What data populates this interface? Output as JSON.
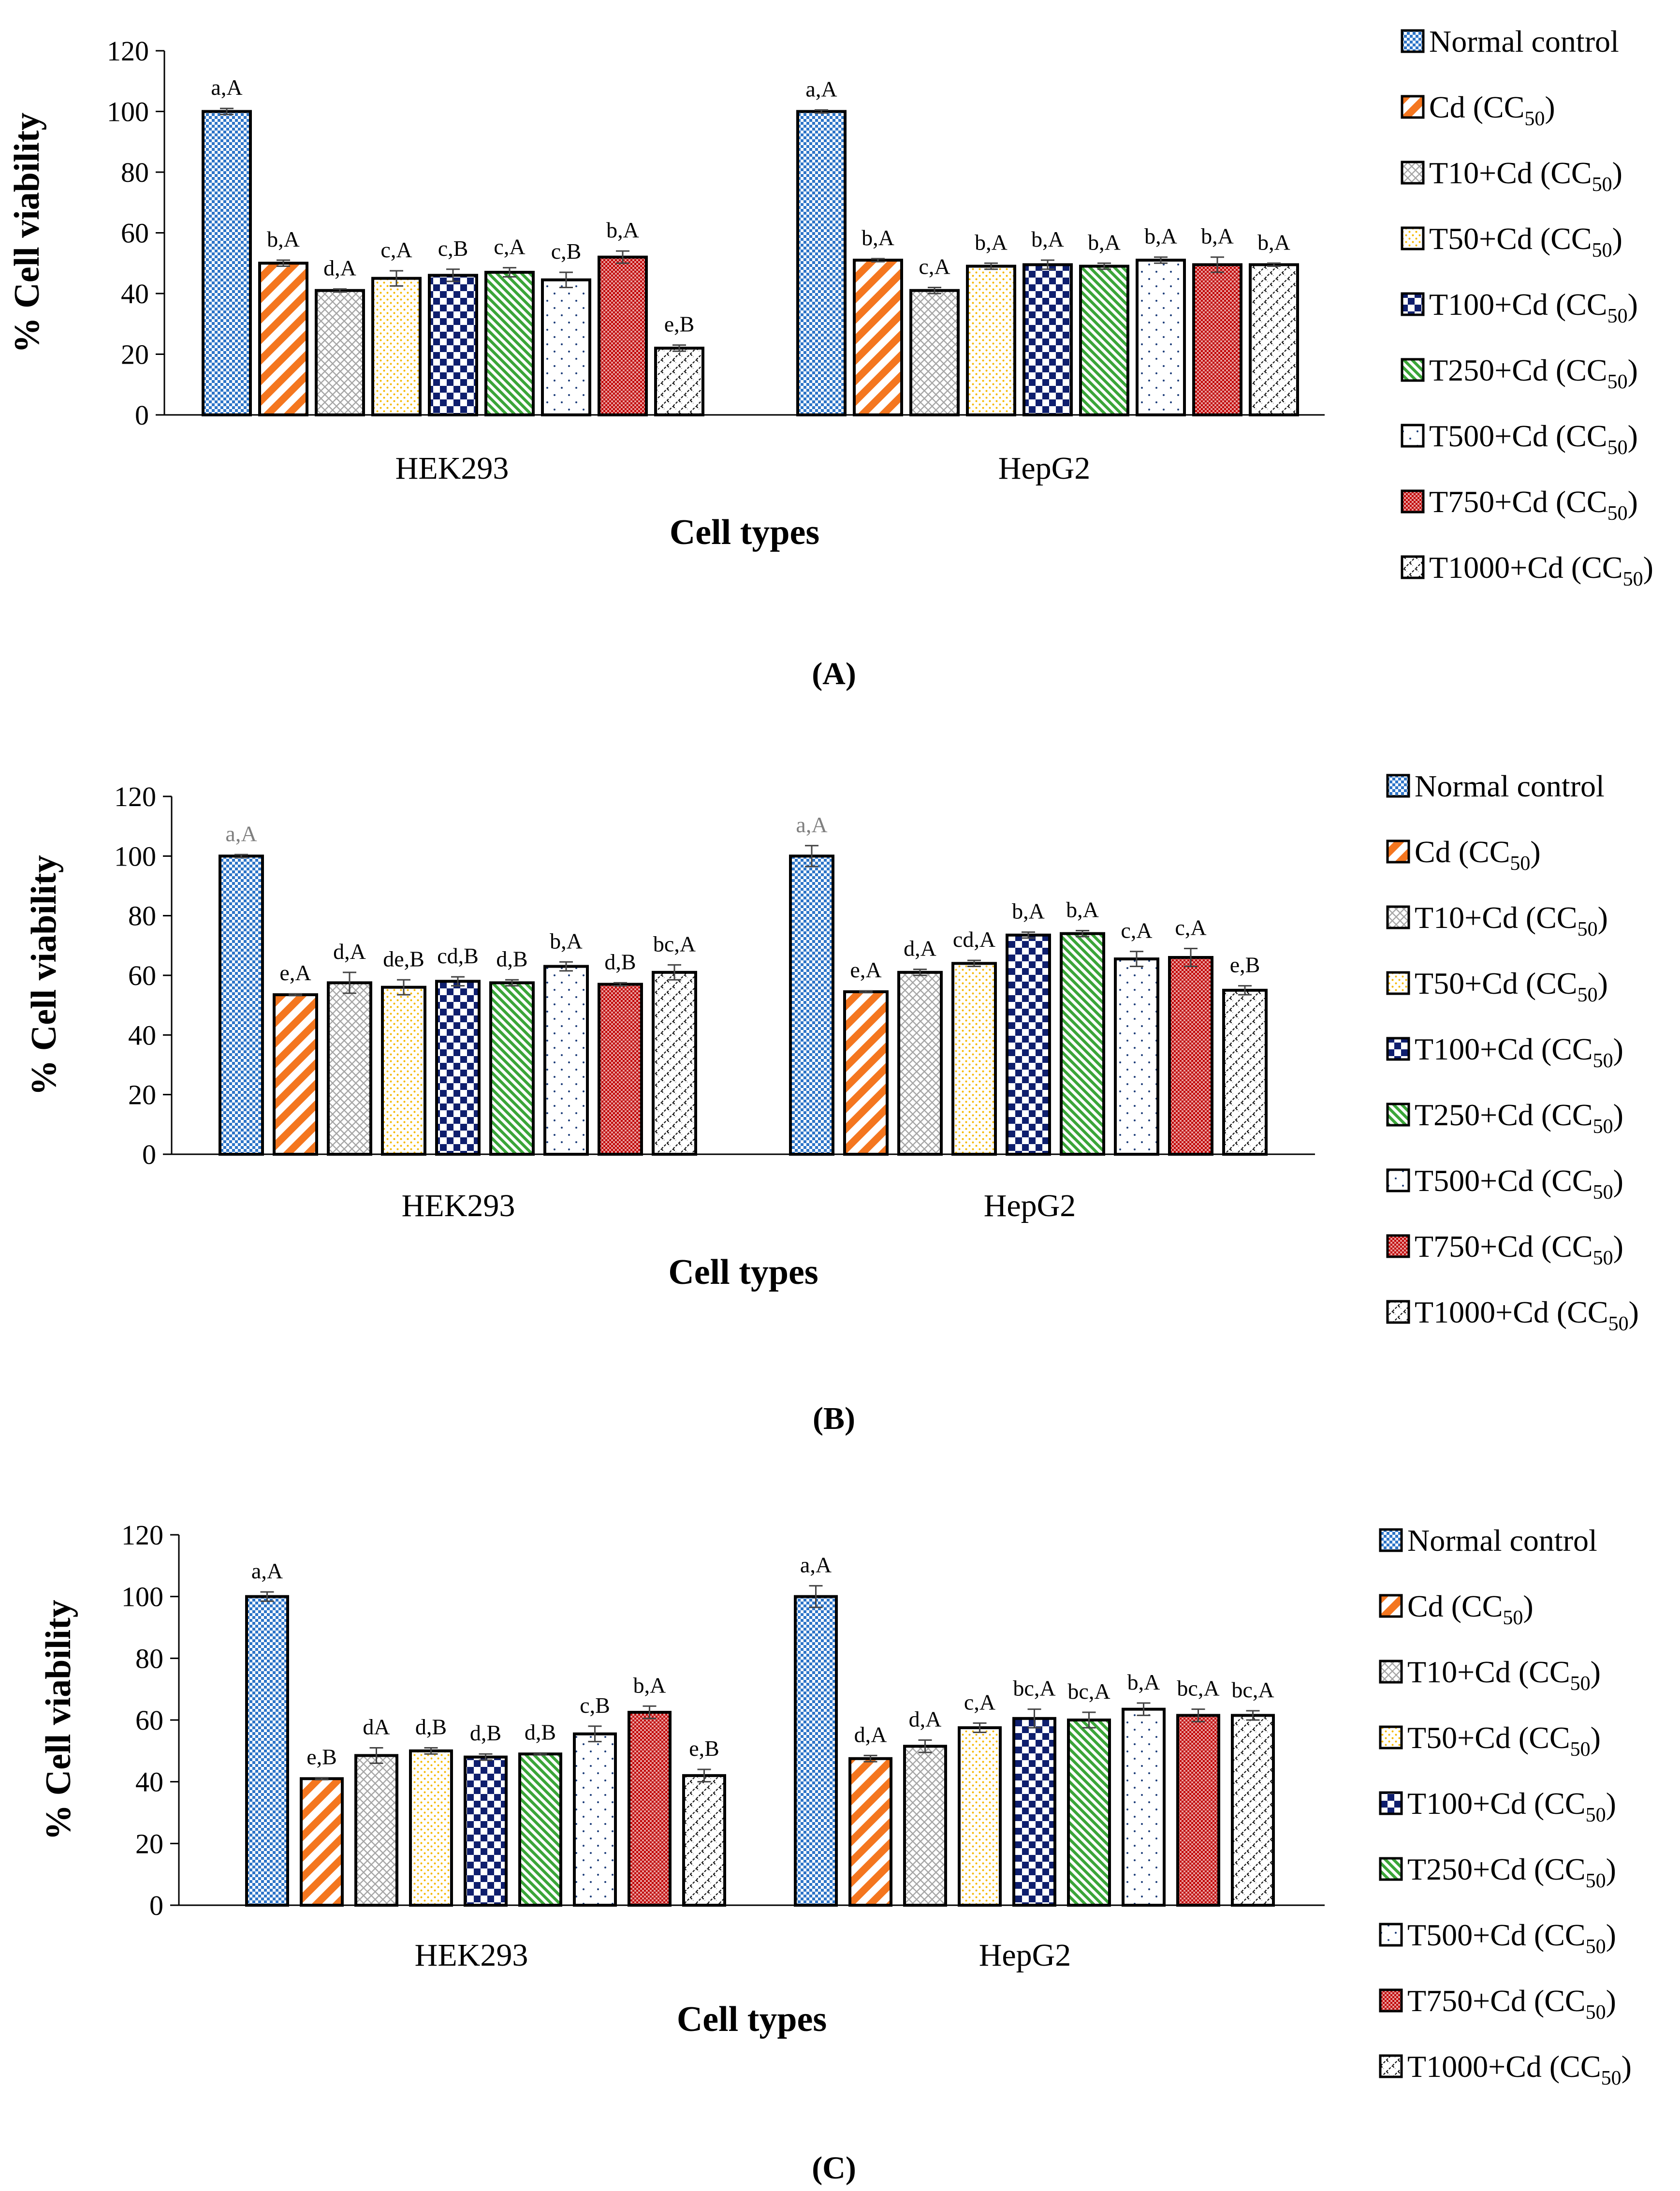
{
  "legend_labels": [
    {
      "main": "Normal control",
      "sub": ""
    },
    {
      "main": "Cd (CC",
      "sub": "50",
      "end": ")"
    },
    {
      "main": "T10+Cd (CC",
      "sub": "50",
      "end": ")"
    },
    {
      "main": "T50+Cd (CC",
      "sub": "50",
      "end": ")"
    },
    {
      "main": "T100+Cd (CC",
      "sub": "50",
      "end": ")"
    },
    {
      "main": "T250+Cd (CC",
      "sub": "50",
      "end": ")"
    },
    {
      "main": "T500+Cd (CC",
      "sub": "50",
      "end": ")"
    },
    {
      "main": "T750+Cd (CC",
      "sub": "50",
      "end": ")"
    },
    {
      "main": "T1000+Cd (CC",
      "sub": "50",
      "end": ")"
    }
  ],
  "series_colors": [
    "#2e75c8",
    "#f4761f",
    "#a6a6a6",
    "#f5b800",
    "#0f1f6e",
    "#3aa538",
    "#1f3f7a",
    "#c00000",
    "#111111"
  ],
  "series_patterns": [
    "checker",
    "stripe",
    "diamond",
    "dots",
    "bigchecker",
    "diag",
    "sparsedots",
    "fine",
    "zigzag"
  ],
  "chart_data": [
    {
      "type": "bar",
      "panel_label": "(A)",
      "ylabel": "% Cell viability",
      "xlabel": "Cell types",
      "ylim": [
        0,
        120
      ],
      "yticks": [
        0,
        20,
        40,
        60,
        80,
        100,
        120
      ],
      "categories": [
        "HEK293",
        "HepG2"
      ],
      "series": [
        {
          "name": "Normal control",
          "values": [
            100,
            100
          ],
          "errors": [
            1,
            0.5
          ],
          "labels": [
            "a,A",
            "a,A"
          ]
        },
        {
          "name": "Cd (CC50)",
          "values": [
            50,
            51
          ],
          "errors": [
            1,
            0.5
          ],
          "labels": [
            "b,A",
            "b,A"
          ]
        },
        {
          "name": "T10+Cd (CC50)",
          "values": [
            41,
            41
          ],
          "errors": [
            0.5,
            1
          ],
          "labels": [
            "d,A",
            "c,A"
          ]
        },
        {
          "name": "T50+Cd (CC50)",
          "values": [
            45,
            49
          ],
          "errors": [
            2.5,
            1
          ],
          "labels": [
            "c,A",
            "b,A"
          ]
        },
        {
          "name": "T100+Cd (CC50)",
          "values": [
            46,
            49.5
          ],
          "errors": [
            2,
            1.5
          ],
          "labels": [
            "c,B",
            "b,A"
          ]
        },
        {
          "name": "T250+Cd (CC50)",
          "values": [
            47,
            49
          ],
          "errors": [
            1.5,
            1
          ],
          "labels": [
            "c,A",
            "b,A"
          ]
        },
        {
          "name": "T500+Cd (CC50)",
          "values": [
            44.5,
            51
          ],
          "errors": [
            2.5,
            1
          ],
          "labels": [
            "c,B",
            "b,A"
          ]
        },
        {
          "name": "T750+Cd (CC50)",
          "values": [
            52,
            49.5
          ],
          "errors": [
            2,
            2.5
          ],
          "labels": [
            "b,A",
            "b,A"
          ]
        },
        {
          "name": "T1000+Cd (CC50)",
          "values": [
            22,
            49.5
          ],
          "errors": [
            1,
            0.5
          ],
          "labels": [
            "e,B",
            "b,A"
          ]
        }
      ]
    },
    {
      "type": "bar",
      "panel_label": "(B)",
      "ylabel": "% Cell viability",
      "xlabel": "Cell types",
      "ylim": [
        0,
        120
      ],
      "yticks": [
        0,
        20,
        40,
        60,
        80,
        100,
        120
      ],
      "categories": [
        "HEK293",
        "HepG2"
      ],
      "series": [
        {
          "name": "Normal control",
          "values": [
            100,
            100
          ],
          "errors": [
            0.5,
            3.5
          ],
          "labels": [
            "a,A",
            "a,A"
          ]
        },
        {
          "name": "Cd (CC50)",
          "values": [
            53.5,
            54.5
          ],
          "errors": [
            0.3,
            0.3
          ],
          "labels": [
            "e,A",
            "e,A"
          ]
        },
        {
          "name": "T10+Cd (CC50)",
          "values": [
            57.5,
            61
          ],
          "errors": [
            3.5,
            1
          ],
          "labels": [
            "d,A",
            "d,A"
          ]
        },
        {
          "name": "T50+Cd (CC50)",
          "values": [
            56,
            64
          ],
          "errors": [
            2.5,
            1
          ],
          "labels": [
            "de,B",
            "cd,A"
          ]
        },
        {
          "name": "T100+Cd (CC50)",
          "values": [
            58,
            73.5
          ],
          "errors": [
            1.5,
            1
          ],
          "labels": [
            "cd,B",
            "b,A"
          ]
        },
        {
          "name": "T250+Cd (CC50)",
          "values": [
            57.5,
            74
          ],
          "errors": [
            1,
            1
          ],
          "labels": [
            "d,B",
            "b,A"
          ]
        },
        {
          "name": "T500+Cd (CC50)",
          "values": [
            63,
            65.5
          ],
          "errors": [
            1.5,
            2.5
          ],
          "labels": [
            "b,A",
            "c,A"
          ]
        },
        {
          "name": "T750+Cd (CC50)",
          "values": [
            57,
            66
          ],
          "errors": [
            0.5,
            3
          ],
          "labels": [
            "d,B",
            "c,A"
          ]
        },
        {
          "name": "T1000+Cd (CC50)",
          "values": [
            61,
            55
          ],
          "errors": [
            2.5,
            1.5
          ],
          "labels": [
            "bc,A",
            "e,B"
          ]
        }
      ]
    },
    {
      "type": "bar",
      "panel_label": "(C)",
      "ylabel": "% Cell viability",
      "xlabel": "Cell types",
      "ylim": [
        0,
        120
      ],
      "yticks": [
        0,
        20,
        40,
        60,
        80,
        100,
        120
      ],
      "categories": [
        "HEK293",
        "HepG2"
      ],
      "series": [
        {
          "name": "Normal control",
          "values": [
            100,
            100
          ],
          "errors": [
            1.5,
            3.5
          ],
          "labels": [
            "a,A",
            "a,A"
          ]
        },
        {
          "name": "Cd (CC50)",
          "values": [
            41,
            47.5
          ],
          "errors": [
            0.3,
            1
          ],
          "labels": [
            "e,B",
            "d,A"
          ]
        },
        {
          "name": "T10+Cd (CC50)",
          "values": [
            48.5,
            51.5
          ],
          "errors": [
            2.5,
            2
          ],
          "labels": [
            "dA",
            "d,A"
          ]
        },
        {
          "name": "T50+Cd (CC50)",
          "values": [
            50,
            57.5
          ],
          "errors": [
            1,
            1.5
          ],
          "labels": [
            "d,B",
            "c,A"
          ]
        },
        {
          "name": "T100+Cd (CC50)",
          "values": [
            48,
            60.5
          ],
          "errors": [
            1,
            3
          ],
          "labels": [
            "d,B",
            "bc,A"
          ]
        },
        {
          "name": "T250+Cd (CC50)",
          "values": [
            49,
            60
          ],
          "errors": [
            0.3,
            2.5
          ],
          "labels": [
            "d,B",
            "bc,A"
          ]
        },
        {
          "name": "T500+Cd (CC50)",
          "values": [
            55.5,
            63.5
          ],
          "errors": [
            2.5,
            2
          ],
          "labels": [
            "c,B",
            "b,A"
          ]
        },
        {
          "name": "T750+Cd (CC50)",
          "values": [
            62.5,
            61.5
          ],
          "errors": [
            2,
            2
          ],
          "labels": [
            "b,A",
            "bc,A"
          ]
        },
        {
          "name": "T1000+Cd (CC50)",
          "values": [
            42,
            61.5
          ],
          "errors": [
            2,
            1.5
          ],
          "labels": [
            "e,B",
            "bc,A"
          ]
        }
      ]
    }
  ]
}
